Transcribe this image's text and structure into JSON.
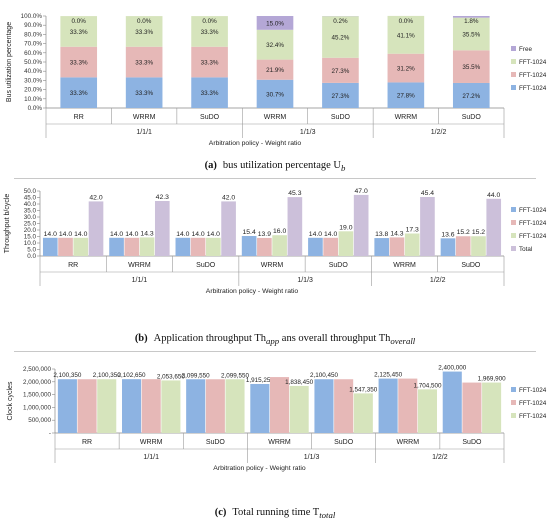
{
  "colors": {
    "free": "#d9ead3",
    "fft": "#b4a7d6",
    "fft_pink": "#e6b8b7",
    "fft_blue": "#8db3e2",
    "fft_green": "#d6e4bc",
    "total": "#ccc0da"
  },
  "chart_data": [
    {
      "type": "bar",
      "stacked": true,
      "caption_label": "(a)",
      "caption_text": "bus utilization percentage U",
      "caption_sub": "b",
      "ylabel": "Bus utilization percentage",
      "xlabel": "Arbitration policy - Weight ratio",
      "ylim": [
        0,
        100
      ],
      "yticks": [
        "0.0%",
        "10.0%",
        "20.0%",
        "30.0%",
        "40.0%",
        "50.0%",
        "60.0%",
        "70.0%",
        "80.0%",
        "90.0%",
        "100.0%"
      ],
      "categories": [
        "RR",
        "WRRM",
        "SuDO",
        "WRRM",
        "SuDO",
        "WRRM",
        "SuDO"
      ],
      "groups": [
        {
          "label": "1/1/1",
          "count": 3
        },
        {
          "label": "1/1/3",
          "count": 2
        },
        {
          "label": "1/2/2",
          "count": 2
        }
      ],
      "series": [
        {
          "name": "FFT-1024",
          "color": "#8db3e2",
          "values": [
            33.3,
            33.3,
            33.3,
            30.7,
            27.3,
            27.8,
            27.2
          ],
          "labels": [
            "33.3%",
            "33.3%",
            "33.3%",
            "30.7%",
            "27.3%",
            "27.8%",
            "27.2%"
          ]
        },
        {
          "name": "FFT-1024",
          "color": "#e6b8b7",
          "values": [
            33.3,
            33.3,
            33.3,
            21.9,
            27.3,
            31.2,
            35.5
          ],
          "labels": [
            "33.3%",
            "33.3%",
            "33.3%",
            "21.9%",
            "27.3%",
            "31.2%",
            "35.5%"
          ]
        },
        {
          "name": "FFT-1024",
          "color": "#d6e4bc",
          "values": [
            33.3,
            33.3,
            33.3,
            32.4,
            45.2,
            41.1,
            35.5
          ],
          "labels": [
            "33.3%",
            "33.3%",
            "33.3%",
            "32.4%",
            "45.2%",
            "41.1%",
            "35.5%"
          ]
        },
        {
          "name": "Free",
          "color": "#b4a7d6",
          "values": [
            0.0,
            0.0,
            0.0,
            15.0,
            0.2,
            0.0,
            1.8
          ],
          "labels": [
            "0.0%",
            "0.0%",
            "0.0%",
            "15.0%",
            "0.2%",
            "0.0%",
            "1.8%"
          ]
        }
      ],
      "legend": [
        "Free",
        "FFT-1024",
        "FFT-1024",
        "FFT-1024"
      ]
    },
    {
      "type": "bar",
      "caption_label": "(b)",
      "caption_text": "Application throughput Th",
      "caption_sub": "app",
      "caption_text2": " ans overall throughput Th",
      "caption_sub2": "overall",
      "ylabel": "Throughput b/cycle",
      "xlabel": "Arbitration policy - Weight ratio",
      "ylim": [
        0,
        50
      ],
      "yticks": [
        "0.0",
        "5.0",
        "10.0",
        "15.0",
        "20.0",
        "25.0",
        "30.0",
        "35.0",
        "40.0",
        "45.0",
        "50.0"
      ],
      "categories": [
        "RR",
        "WRRM",
        "SuDO",
        "WRRM",
        "SuDO",
        "WRRM",
        "SuDO"
      ],
      "groups": [
        {
          "label": "1/1/1",
          "count": 3
        },
        {
          "label": "1/1/3",
          "count": 2
        },
        {
          "label": "1/2/2",
          "count": 2
        }
      ],
      "series": [
        {
          "name": "FFT-1024",
          "color": "#8db3e2",
          "values": [
            14.0,
            14.0,
            14.0,
            15.4,
            14.0,
            13.8,
            13.6
          ],
          "labels": [
            "14.0",
            "14.0",
            "14.0",
            "15.4",
            "14.0",
            "13.8",
            "13.6"
          ]
        },
        {
          "name": "FFT-1024",
          "color": "#e6b8b7",
          "values": [
            14.0,
            14.0,
            14.0,
            13.9,
            14.0,
            14.3,
            15.2
          ],
          "labels": [
            "14.0",
            "14.0",
            "14.0",
            "13.9",
            "14.0",
            "14.3",
            "15.2"
          ]
        },
        {
          "name": "FFT-1024",
          "color": "#d6e4bc",
          "values": [
            14.0,
            14.3,
            14.0,
            16.0,
            19.0,
            17.3,
            15.2
          ],
          "labels": [
            "14.0",
            "14.3",
            "14.0",
            "16.0",
            "19.0",
            "17.3",
            "15.2"
          ]
        },
        {
          "name": "Total",
          "color": "#ccc0da",
          "values": [
            42.0,
            42.3,
            42.0,
            45.3,
            47.0,
            45.4,
            44.0
          ],
          "labels": [
            "42.0",
            "42.3",
            "42.0",
            "45.3",
            "47.0",
            "45.4",
            "44.0"
          ]
        }
      ],
      "legend": [
        "FFT-1024",
        "FFT-1024",
        "FFT-1024",
        "Total"
      ]
    },
    {
      "type": "bar",
      "caption_label": "(c)",
      "caption_text": "Total running time T",
      "caption_sub": "total",
      "ylabel": "Clock cycles",
      "xlabel": "Arbitration policy - Weight ratio",
      "ylim": [
        0,
        2500000
      ],
      "yticks": [
        "-",
        "500,000",
        "1,000,000",
        "1,500,000",
        "2,000,000",
        "2,500,000"
      ],
      "categories": [
        "RR",
        "WRRM",
        "SuDO",
        "WRRM",
        "SuDO",
        "WRRM",
        "SuDO"
      ],
      "groups": [
        {
          "label": "1/1/1",
          "count": 3
        },
        {
          "label": "1/1/3",
          "count": 2
        },
        {
          "label": "1/2/2",
          "count": 2
        }
      ],
      "series": [
        {
          "name": "FFT-1024",
          "color": "#8db3e2",
          "values": [
            2100350,
            2102650,
            2099550,
            1915250,
            2100450,
            2125450,
            2400000
          ],
          "labels": [
            "2,100,350",
            "2,102,650",
            "2,099,550",
            "1,915,250",
            "2,100,450",
            "2,125,450",
            "2,400,000"
          ]
        },
        {
          "name": "FFT-1024",
          "color": "#e6b8b7",
          "values": [
            2100350,
            2102650,
            2099550,
            2185000,
            2100450,
            2125450,
            1969900
          ],
          "labels": [
            "",
            "",
            "",
            "",
            "",
            "",
            ""
          ]
        },
        {
          "name": "FFT-1024",
          "color": "#d6e4bc",
          "values": [
            2100350,
            2053650,
            2099550,
            1838450,
            1547350,
            1704500,
            1969900
          ],
          "labels": [
            "2,100,350",
            "2,053,650",
            "2,099,550",
            "1,838,450",
            "1,547,350",
            "1,704,500",
            "1,969,900"
          ]
        }
      ],
      "legend": [
        "FFT-1024",
        "FFT-1024",
        "FFT-1024"
      ]
    }
  ]
}
